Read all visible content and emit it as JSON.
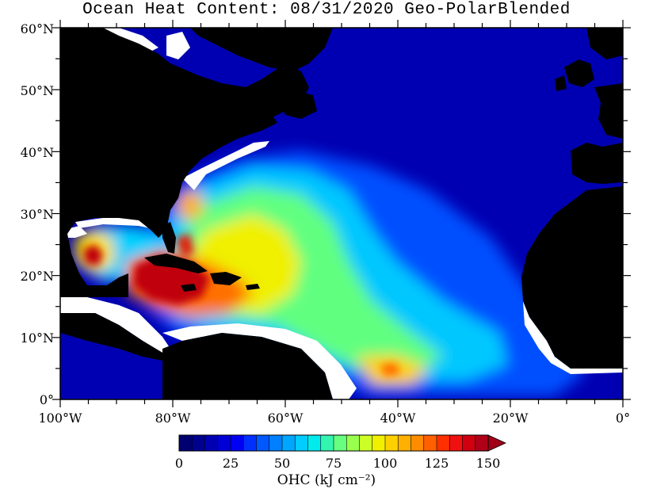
{
  "map": {
    "title": "Ocean Heat Content: 08/31/2020 Geo-PolarBlended",
    "lat_labels": [
      "60°N",
      "50°N",
      "40°N",
      "30°N",
      "20°N",
      "10°N",
      "0°"
    ],
    "lon_labels": [
      "100°W",
      "80°W",
      "60°W",
      "40°W",
      "20°W",
      "0°"
    ],
    "lon_range": [
      -100,
      0
    ],
    "lat_range": [
      0,
      60
    ],
    "land_color": "#000000",
    "nodata_color": "#ffffff"
  },
  "colorbar": {
    "tick_labels": [
      "0",
      "25",
      "50",
      "75",
      "100",
      "125",
      "150"
    ],
    "min": 0,
    "max": 150,
    "step": 6.25,
    "unit_label": "OHC (kJ cm⁻²)",
    "colors": [
      "#000070",
      "#00008f",
      "#0000b2",
      "#0000d6",
      "#0000f5",
      "#0030ff",
      "#0058ff",
      "#0080ff",
      "#00a6ff",
      "#00ccff",
      "#00ecec",
      "#33f5b0",
      "#66ff80",
      "#99ff4d",
      "#ccff26",
      "#f0f000",
      "#ffd000",
      "#ffb000",
      "#ff8c00",
      "#ff6000",
      "#ff3000",
      "#f01010",
      "#d00010",
      "#b00018"
    ]
  },
  "chart_data": {
    "type": "heatmap",
    "title": "Ocean Heat Content: 08/31/2020 Geo-PolarBlended",
    "x_axis": {
      "range": [
        -100,
        0
      ],
      "ticks": [
        -100,
        -80,
        -60,
        -40,
        -20,
        0
      ],
      "tick_labels": [
        "100°W",
        "80°W",
        "60°W",
        "40°W",
        "20°W",
        "0°"
      ]
    },
    "y_axis": {
      "range": [
        0,
        60
      ],
      "ticks": [
        0,
        10,
        20,
        30,
        40,
        50,
        60
      ],
      "tick_labels": [
        "0°",
        "10°N",
        "20°N",
        "30°N",
        "40°N",
        "50°N",
        "60°N"
      ]
    },
    "colorbar": {
      "range": [
        0,
        150
      ],
      "ticks": [
        0,
        25,
        50,
        75,
        100,
        125,
        150
      ],
      "unit": "OHC (kJ cm⁻²)"
    }
  }
}
